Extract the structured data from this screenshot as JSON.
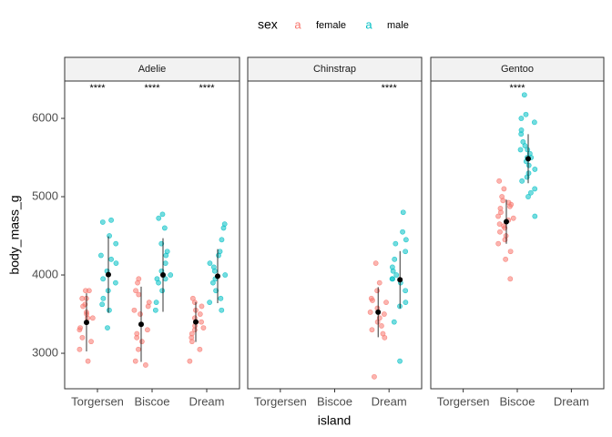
{
  "chart_data": {
    "type": "scatter",
    "legend_title": "sex",
    "legend_key": "a",
    "series": [
      {
        "name": "female",
        "color": "#F8766D"
      },
      {
        "name": "male",
        "color": "#00BFC4"
      }
    ],
    "x_label": "island",
    "y_label": "body_mass_g",
    "categories": [
      "Torgersen",
      "Biscoe",
      "Dream"
    ],
    "ylim": [
      2547,
      6477
    ],
    "yticks": [
      3000,
      4000,
      5000,
      6000
    ],
    "facets": [
      {
        "label": "Adelie",
        "groups": [
          {
            "category": "Torgersen",
            "annotation": "****",
            "values": [
              [
                3700,
                3450,
                3325,
                3200,
                3800,
                3500,
                3050,
                3450,
                2900,
                3625,
                3600,
                3150,
                3800,
                3300,
                3525,
                3700
              ],
              [
                4700,
                4675,
                4500,
                3800,
                3950,
                4250,
                3900,
                4150,
                3625,
                3325,
                4400,
                3700,
                4050,
                3550,
                4200
              ]
            ],
            "means": [
              3395,
              4005
            ],
            "sds": [
              372,
              488
            ]
          },
          {
            "category": "Biscoe",
            "annotation": "****",
            "values": [
              [
                3900,
                3800,
                3650,
                3500,
                3200,
                3150,
                3050,
                2900,
                2850,
                3950,
                3750,
                3550,
                3600,
                3250,
                3300
              ],
              [
                4775,
                4725,
                4600,
                4400,
                4300,
                4150,
                3950,
                3900,
                3800,
                3650,
                3550,
                4050,
                4250,
                3950,
                4000
              ]
            ],
            "means": [
              3370,
              4000
            ],
            "sds": [
              480,
              470
            ]
          },
          {
            "category": "Dream",
            "annotation": "****",
            "values": [
              [
                3700,
                3650,
                3550,
                3450,
                3400,
                3350,
                3300,
                3250,
                3200,
                3050,
                2900,
                3150,
                3500,
                3600,
                3325
              ],
              [
                4650,
                4600,
                4450,
                4300,
                4250,
                4150,
                4050,
                3950,
                3900,
                3800,
                3700,
                3550,
                4100,
                4000,
                3650
              ]
            ],
            "means": [
              3400,
              3985
            ],
            "sds": [
              255,
              345
            ]
          }
        ]
      },
      {
        "label": "Chinstrap",
        "groups": [
          {
            "category": "Dream",
            "annotation": "****",
            "values": [
              [
                4150,
                3900,
                3800,
                3700,
                3650,
                3575,
                3500,
                3450,
                3400,
                3300,
                3250,
                3200,
                2700,
                3525,
                3675,
                3350
              ],
              [
                4800,
                4550,
                4450,
                4400,
                4300,
                4200,
                4100,
                4050,
                3950,
                3900,
                3800,
                3650,
                3400,
                2900,
                3950,
                4000,
                3600
              ]
            ],
            "means": [
              3525,
              3940
            ],
            "sds": [
              320,
              365
            ]
          }
        ]
      },
      {
        "label": "Gentoo",
        "groups": [
          {
            "category": "Biscoe",
            "annotation": "****",
            "values": [
              [
                5200,
                5100,
                5000,
                4950,
                4900,
                4850,
                4800,
                4750,
                4700,
                4650,
                4600,
                4550,
                4500,
                4450,
                4400,
                4300,
                4200,
                3950,
                4625,
                4725,
                4875,
                4925
              ],
              [
                6300,
                6050,
                6000,
                5950,
                5850,
                5800,
                5700,
                5650,
                5600,
                5550,
                5500,
                5450,
                5400,
                5350,
                5300,
                5250,
                5200,
                5100,
                5050,
                5000,
                4750,
                5500,
                5600
              ]
            ],
            "means": [
              4680,
              5485
            ],
            "sds": [
              282,
              313
            ]
          }
        ]
      }
    ]
  }
}
